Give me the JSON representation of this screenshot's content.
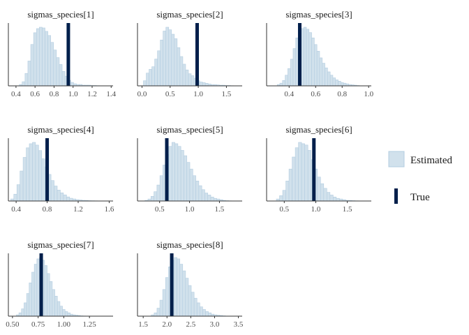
{
  "colors": {
    "estimated_fill": "#d1e1ec",
    "estimated_stroke": "#b3cde0",
    "true_line": "#011f4b",
    "axis": "#333333"
  },
  "legend": {
    "estimated_label": "Estimated",
    "true_label": "True"
  },
  "chart_data": [
    {
      "type": "histogram",
      "title": "sigmas_species[1]",
      "xlim": [
        0.32,
        1.42
      ],
      "xticks": [
        0.4,
        0.6,
        0.8,
        1.0,
        1.2,
        1.4
      ],
      "tick_labels": [
        "0.4",
        "0.6",
        "0.8",
        "1.0",
        "1.2",
        "1.4"
      ],
      "true_value": 0.95,
      "bins": [
        0.45,
        0.48,
        0.51,
        0.54,
        0.57,
        0.6,
        0.63,
        0.66,
        0.69,
        0.72,
        0.75,
        0.78,
        0.81,
        0.84,
        0.87,
        0.9,
        0.93,
        0.96,
        0.99,
        1.02,
        1.05,
        1.08,
        1.11,
        1.14,
        1.17,
        1.2,
        1.23,
        1.26,
        1.29
      ],
      "counts": [
        2,
        6,
        18,
        36,
        60,
        77,
        83,
        85,
        84,
        79,
        73,
        63,
        52,
        41,
        31,
        21,
        14,
        8,
        5,
        3,
        2,
        2,
        1,
        1,
        1,
        0.5,
        0.5,
        0.3,
        0.2
      ]
    },
    {
      "type": "histogram",
      "title": "sigmas_species[2]",
      "xlim": [
        -0.08,
        1.78
      ],
      "xticks": [
        0.0,
        0.5,
        1.0,
        1.5
      ],
      "tick_labels": [
        "0.0",
        "0.5",
        "1.0",
        "1.5"
      ],
      "true_value": 0.98,
      "bins": [
        0.05,
        0.1,
        0.15,
        0.2,
        0.25,
        0.3,
        0.35,
        0.4,
        0.45,
        0.5,
        0.55,
        0.6,
        0.65,
        0.7,
        0.75,
        0.8,
        0.85,
        0.9,
        0.95,
        1.0,
        1.05,
        1.1,
        1.15,
        1.2,
        1.25,
        1.3,
        1.35,
        1.4,
        1.45,
        1.5,
        1.55,
        1.6
      ],
      "counts": [
        8,
        20,
        26,
        30,
        42,
        55,
        72,
        86,
        92,
        88,
        81,
        74,
        60,
        46,
        34,
        25,
        19,
        16,
        12,
        8,
        6,
        5,
        4,
        3,
        2,
        2,
        1.5,
        1,
        1,
        0.5,
        0.5,
        0.3
      ]
    },
    {
      "type": "histogram",
      "title": "sigmas_species[3]",
      "xlim": [
        0.23,
        1.02
      ],
      "xticks": [
        0.4,
        0.6,
        0.8,
        1.0
      ],
      "tick_labels": [
        "0.4",
        "0.6",
        "0.8",
        "1.0"
      ],
      "true_value": 0.48,
      "bins": [
        0.32,
        0.34,
        0.36,
        0.38,
        0.4,
        0.42,
        0.44,
        0.46,
        0.48,
        0.5,
        0.52,
        0.54,
        0.56,
        0.58,
        0.6,
        0.62,
        0.64,
        0.66,
        0.68,
        0.7,
        0.72,
        0.74,
        0.76,
        0.78,
        0.8,
        0.82,
        0.84,
        0.86,
        0.88,
        0.9,
        0.92
      ],
      "counts": [
        2,
        4,
        8,
        16,
        26,
        40,
        56,
        72,
        82,
        86,
        88,
        85,
        80,
        72,
        62,
        52,
        42,
        34,
        27,
        21,
        16,
        12,
        9,
        7,
        5,
        4,
        3,
        2,
        1.5,
        1,
        0.5
      ]
    },
    {
      "type": "histogram",
      "title": "sigmas_species[4]",
      "xlim": [
        0.3,
        1.65
      ],
      "xticks": [
        0.4,
        0.8,
        1.2,
        1.6
      ],
      "tick_labels": [
        "0.4",
        "0.8",
        "1.2",
        "1.6"
      ],
      "true_value": 0.8,
      "bins": [
        0.35,
        0.39,
        0.43,
        0.47,
        0.51,
        0.55,
        0.59,
        0.63,
        0.67,
        0.71,
        0.75,
        0.79,
        0.83,
        0.87,
        0.91,
        0.95,
        0.99,
        1.03,
        1.07,
        1.11,
        1.15,
        1.19,
        1.23,
        1.27,
        1.31,
        1.35,
        1.39,
        1.43,
        1.47
      ],
      "counts": [
        3,
        10,
        24,
        44,
        64,
        78,
        84,
        86,
        82,
        74,
        62,
        50,
        39,
        30,
        22,
        16,
        12,
        9,
        6,
        4,
        3,
        2,
        1.5,
        1,
        0.8,
        0.5,
        0.4,
        0.3,
        0.2
      ]
    },
    {
      "type": "histogram",
      "title": "sigmas_species[5]",
      "xlim": [
        0.13,
        1.88
      ],
      "xticks": [
        0.5,
        1.0,
        1.5
      ],
      "tick_labels": [
        "0.5",
        "1.0",
        "1.5"
      ],
      "true_value": 0.62,
      "bins": [
        0.28,
        0.33,
        0.38,
        0.43,
        0.48,
        0.53,
        0.58,
        0.63,
        0.68,
        0.73,
        0.78,
        0.83,
        0.88,
        0.93,
        0.98,
        1.03,
        1.08,
        1.13,
        1.18,
        1.23,
        1.28,
        1.33,
        1.38,
        1.43,
        1.48,
        1.53,
        1.58,
        1.63,
        1.68
      ],
      "counts": [
        1,
        3,
        7,
        14,
        24,
        38,
        54,
        70,
        82,
        88,
        86,
        82,
        76,
        68,
        58,
        48,
        38,
        30,
        23,
        17,
        12,
        9,
        6,
        4,
        3,
        2,
        1,
        0.5,
        0.3
      ]
    },
    {
      "type": "histogram",
      "title": "sigmas_species[6]",
      "xlim": [
        0.22,
        1.88
      ],
      "xticks": [
        0.5,
        1.0,
        1.5
      ],
      "tick_labels": [
        "0.5",
        "1.0",
        "1.5"
      ],
      "true_value": 0.97,
      "bins": [
        0.4,
        0.45,
        0.5,
        0.55,
        0.6,
        0.65,
        0.7,
        0.75,
        0.8,
        0.85,
        0.9,
        0.95,
        1.0,
        1.05,
        1.1,
        1.15,
        1.2,
        1.25,
        1.3,
        1.35,
        1.4,
        1.45,
        1.5,
        1.55,
        1.6,
        1.65,
        1.7
      ],
      "counts": [
        3,
        8,
        16,
        30,
        48,
        66,
        80,
        88,
        86,
        84,
        76,
        62,
        48,
        36,
        26,
        19,
        13,
        9,
        6,
        4,
        3,
        2,
        1,
        0.8,
        0.5,
        0.3,
        0.2
      ]
    },
    {
      "type": "histogram",
      "title": "sigmas_species[7]",
      "xlim": [
        0.46,
        1.48
      ],
      "xticks": [
        0.5,
        0.75,
        1.0,
        1.25
      ],
      "tick_labels": [
        "0.50",
        "0.75",
        "1.00",
        "1.25"
      ],
      "true_value": 0.78,
      "bins": [
        0.55,
        0.575,
        0.6,
        0.625,
        0.65,
        0.675,
        0.7,
        0.725,
        0.75,
        0.775,
        0.8,
        0.825,
        0.85,
        0.875,
        0.9,
        0.925,
        0.95,
        0.975,
        1.0,
        1.025,
        1.05,
        1.075,
        1.1,
        1.125,
        1.15,
        1.175,
        1.2
      ],
      "counts": [
        2,
        5,
        11,
        20,
        34,
        50,
        66,
        78,
        86,
        88,
        84,
        76,
        64,
        52,
        40,
        30,
        22,
        15,
        10,
        7,
        5,
        3,
        2,
        1.5,
        1,
        0.5,
        0.3
      ]
    },
    {
      "type": "histogram",
      "title": "sigmas_species[8]",
      "xlim": [
        1.38,
        3.58
      ],
      "xticks": [
        1.5,
        2.0,
        2.5,
        3.0,
        3.5
      ],
      "tick_labels": [
        "1.5",
        "2.0",
        "2.5",
        "3.0",
        "3.5"
      ],
      "true_value": 2.1,
      "bins": [
        1.7,
        1.76,
        1.82,
        1.88,
        1.94,
        2.0,
        2.06,
        2.12,
        2.18,
        2.24,
        2.3,
        2.36,
        2.42,
        2.48,
        2.54,
        2.6,
        2.66,
        2.72,
        2.78,
        2.84,
        2.9,
        2.96,
        3.02,
        3.08,
        3.14,
        3.2
      ],
      "counts": [
        2,
        5,
        12,
        24,
        40,
        58,
        74,
        84,
        88,
        86,
        78,
        68,
        57,
        46,
        36,
        27,
        20,
        14,
        10,
        7,
        5,
        3,
        2,
        1.5,
        1,
        0.5
      ]
    }
  ]
}
